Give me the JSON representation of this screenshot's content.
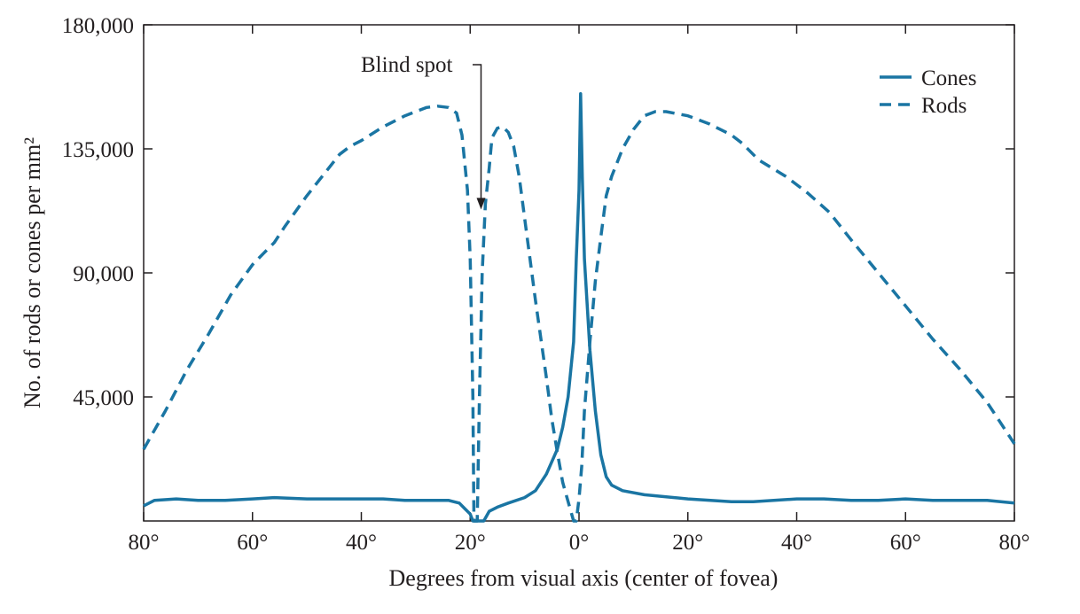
{
  "chart_data": {
    "type": "line",
    "title": "",
    "xlabel": "Degrees from visual axis (center of fovea)",
    "ylabel": "No. of rods or cones per mm²",
    "xlim": [
      -80,
      80
    ],
    "ylim": [
      0,
      180000
    ],
    "x_ticks": [
      -80,
      -60,
      -40,
      -20,
      0,
      20,
      40,
      60,
      80
    ],
    "x_tick_labels": [
      "80°",
      "60°",
      "40°",
      "20°",
      "0°",
      "20°",
      "40°",
      "60°",
      "80°"
    ],
    "y_ticks": [
      45000,
      90000,
      135000,
      180000
    ],
    "y_tick_labels": [
      "45,000",
      "90,000",
      "135,000",
      "180,000"
    ],
    "grid": false,
    "legend_position": "top-right",
    "annotation": {
      "text": "Blind spot",
      "x": -18,
      "y": 113000
    },
    "series": [
      {
        "name": "Cones",
        "style": "solid",
        "color": "#1a75a3",
        "x": [
          -80,
          -78,
          -74,
          -70,
          -65,
          -60,
          -56,
          -50,
          -45,
          -40,
          -36,
          -32,
          -28,
          -24,
          -22,
          -21,
          -20,
          -19.5,
          -18.7,
          -17.5,
          -16.5,
          -15,
          -13,
          -10,
          -8,
          -6,
          -4,
          -3,
          -2,
          -1,
          -0.5,
          0,
          0.3,
          0.6,
          1,
          2,
          3,
          4,
          5,
          6,
          8,
          12,
          20,
          28,
          32,
          40,
          45,
          50,
          55,
          60,
          65,
          70,
          75,
          80
        ],
        "y": [
          5500,
          7500,
          8000,
          7500,
          7500,
          8000,
          8500,
          8000,
          8000,
          8000,
          8000,
          7500,
          7500,
          7500,
          6500,
          4500,
          2500,
          0,
          0,
          0,
          3500,
          5000,
          6500,
          8500,
          11000,
          17000,
          26000,
          34000,
          45000,
          65000,
          95000,
          120000,
          155000,
          125000,
          95000,
          62000,
          40000,
          24000,
          16000,
          13000,
          11000,
          9500,
          8000,
          7000,
          7000,
          8000,
          8000,
          7500,
          7500,
          8000,
          7500,
          7500,
          7500,
          6500
        ]
      },
      {
        "name": "Rods",
        "style": "dashed",
        "color": "#1a75a3",
        "x": [
          -80,
          -76,
          -72,
          -68,
          -64,
          -60,
          -58,
          -56,
          -54,
          -50,
          -46,
          -44,
          -42,
          -40,
          -36,
          -32,
          -28,
          -26,
          -24,
          -22.5,
          -21.5,
          -20.5,
          -20,
          -19.5,
          -19.3,
          -18.7,
          -18.3,
          -17.8,
          -17.2,
          -16.5,
          -16,
          -15,
          -14,
          -13,
          -12,
          -11,
          -10,
          -8,
          -6,
          -5,
          -4,
          -3,
          -2,
          -1,
          -0.5,
          0,
          0.5,
          1,
          2,
          3,
          4,
          5,
          6,
          8,
          10,
          12,
          14,
          16,
          20,
          24,
          28,
          30,
          33,
          38,
          42,
          46,
          50,
          55,
          60,
          65,
          70,
          75,
          78,
          80
        ],
        "y": [
          26000,
          40000,
          55000,
          68000,
          82000,
          93000,
          97000,
          101000,
          107000,
          118000,
          128000,
          133000,
          136000,
          138000,
          143000,
          147000,
          150000,
          150500,
          150000,
          148000,
          140000,
          120000,
          95000,
          45000,
          0,
          0,
          45000,
          90000,
          115000,
          128000,
          139000,
          142500,
          143000,
          141000,
          136000,
          125000,
          110000,
          80000,
          52000,
          37000,
          25000,
          14000,
          7000,
          0,
          0,
          8000,
          20000,
          40000,
          65000,
          87000,
          103000,
          118000,
          125000,
          135000,
          142000,
          147000,
          148500,
          148500,
          147000,
          144000,
          140000,
          137000,
          131000,
          125000,
          119000,
          112000,
          102000,
          90000,
          78000,
          66000,
          55000,
          43000,
          34000,
          28000
        ]
      }
    ]
  }
}
